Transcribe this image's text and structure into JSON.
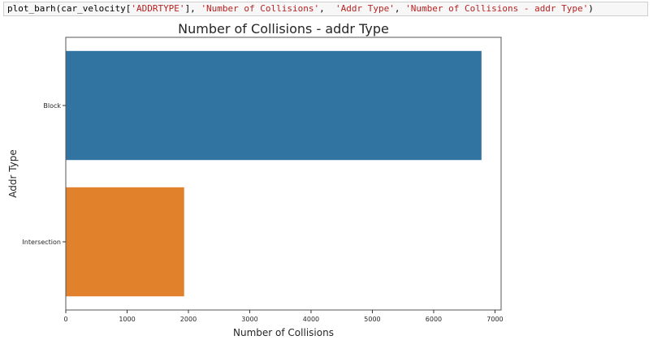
{
  "code_cell": {
    "tokens": [
      {
        "t": "plain",
        "v": "plot_barh(car_velocity["
      },
      {
        "t": "str",
        "v": "'ADDRTYPE'"
      },
      {
        "t": "plain",
        "v": "], "
      },
      {
        "t": "str",
        "v": "'Number of Collisions'"
      },
      {
        "t": "plain",
        "v": ",  "
      },
      {
        "t": "str",
        "v": "'Addr Type'"
      },
      {
        "t": "plain",
        "v": ", "
      },
      {
        "t": "str",
        "v": "'Number of Collisions - addr Type'"
      },
      {
        "t": "plain",
        "v": ")"
      }
    ]
  },
  "chart_data": {
    "type": "bar",
    "orientation": "horizontal",
    "title": "Number of Collisions - addr Type",
    "xlabel": "Number of Collisions",
    "ylabel": "Addr Type",
    "categories": [
      "Block",
      "Intersection"
    ],
    "values": [
      6780,
      1930
    ],
    "colors": [
      "#3274a1",
      "#e1812c"
    ],
    "xlim": [
      0,
      7100
    ],
    "xticks": [
      0,
      1000,
      2000,
      3000,
      4000,
      5000,
      6000,
      7000
    ],
    "grid": false,
    "legend": "none"
  }
}
